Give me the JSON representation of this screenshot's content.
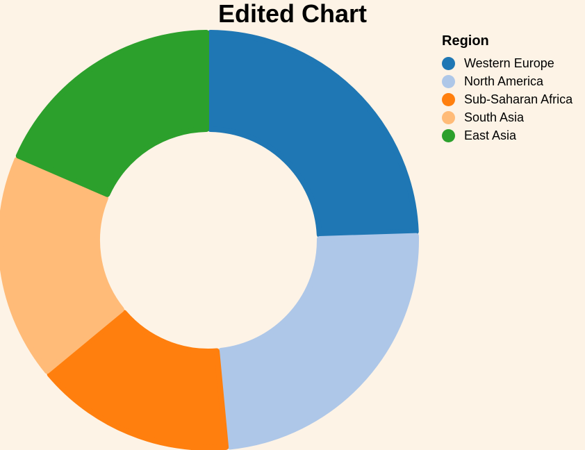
{
  "chart_data": {
    "type": "pie",
    "title": "Edited Chart",
    "legend_title": "Region",
    "legend_position": "top-right",
    "donut": true,
    "categories": [
      "Western Europe",
      "North America",
      "Sub-Saharan Africa",
      "South Asia",
      "East Asia"
    ],
    "values": [
      24.5,
      24.0,
      15.5,
      17.5,
      18.5
    ],
    "colors": [
      "#1f77b4",
      "#aec7e8",
      "#ff7f0e",
      "#ffbb78",
      "#2ca02c"
    ]
  },
  "background": "#fdf3e6"
}
